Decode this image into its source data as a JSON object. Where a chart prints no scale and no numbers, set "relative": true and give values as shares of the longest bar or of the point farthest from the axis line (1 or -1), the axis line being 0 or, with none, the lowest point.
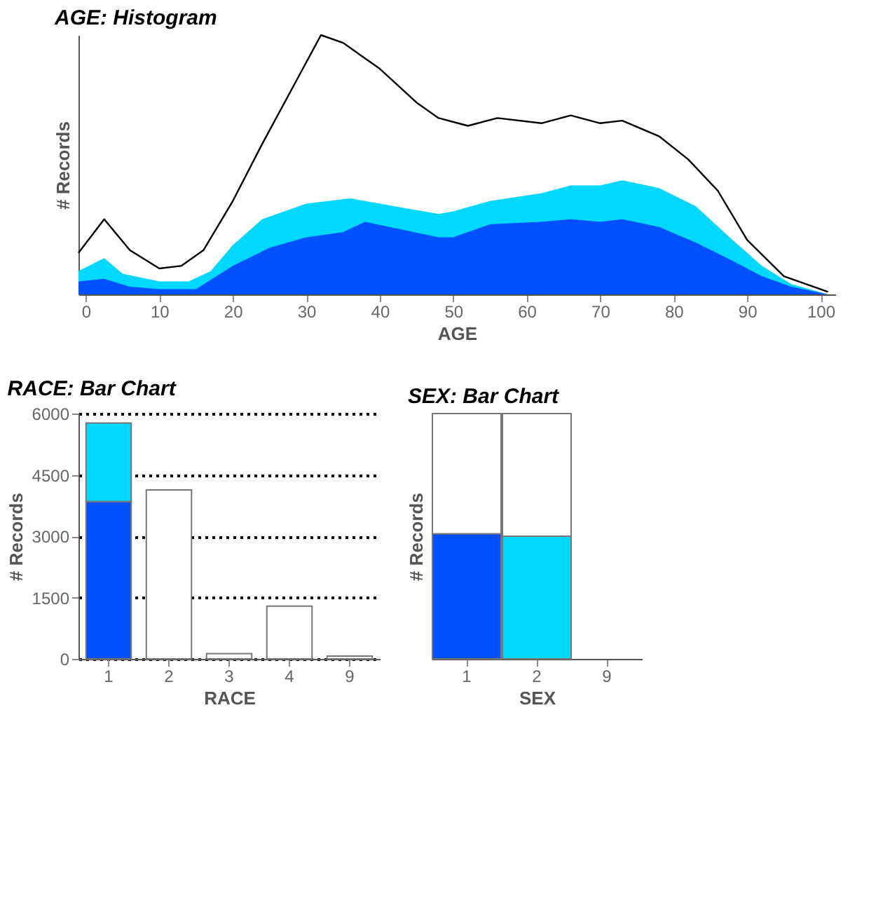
{
  "chart_data": [
    {
      "type": "area",
      "title": "AGE: Histogram",
      "xlabel": "AGE",
      "ylabel": "# Records",
      "relative": true,
      "xlim": [
        -1,
        102
      ],
      "xticks": [
        0,
        10,
        20,
        30,
        40,
        50,
        60,
        70,
        80,
        90,
        100
      ],
      "grid": false,
      "series": [
        {
          "type": "line",
          "color": "#000000",
          "x": [
            -1,
            2.5,
            6,
            10,
            13,
            16,
            20,
            24,
            28,
            32,
            35,
            40,
            45,
            48,
            52,
            56,
            62,
            66,
            70,
            73,
            78,
            82,
            86,
            90,
            95,
            101
          ],
          "values": [
            0.16,
            0.29,
            0.17,
            0.1,
            0.11,
            0.17,
            0.36,
            0.58,
            0.79,
            1.0,
            0.97,
            0.87,
            0.74,
            0.68,
            0.65,
            0.68,
            0.66,
            0.69,
            0.66,
            0.67,
            0.61,
            0.52,
            0.4,
            0.21,
            0.07,
            0.01
          ]
        },
        {
          "type": "area",
          "color": "#00d8ff",
          "x": [
            -1,
            2.5,
            5,
            10,
            14,
            17,
            20,
            24,
            30,
            36,
            42,
            48,
            50,
            55,
            62,
            66,
            70,
            73,
            78,
            83,
            88,
            92,
            96,
            101
          ],
          "values": [
            0.09,
            0.14,
            0.08,
            0.05,
            0.05,
            0.09,
            0.19,
            0.29,
            0.35,
            0.37,
            0.34,
            0.31,
            0.32,
            0.36,
            0.39,
            0.42,
            0.42,
            0.44,
            0.41,
            0.34,
            0.21,
            0.11,
            0.04,
            0.0
          ]
        },
        {
          "type": "area",
          "color": "#0050ff",
          "x": [
            -1,
            2.5,
            6,
            10,
            15,
            20,
            25,
            30,
            35,
            38,
            43,
            48,
            50,
            55,
            62,
            66,
            70,
            73,
            78,
            83,
            88,
            92,
            96,
            101
          ],
          "values": [
            0.05,
            0.06,
            0.03,
            0.02,
            0.02,
            0.11,
            0.18,
            0.22,
            0.24,
            0.28,
            0.25,
            0.22,
            0.22,
            0.27,
            0.28,
            0.29,
            0.28,
            0.29,
            0.26,
            0.2,
            0.13,
            0.07,
            0.03,
            0.0
          ]
        }
      ]
    },
    {
      "type": "bar",
      "title": "RACE: Bar Chart",
      "xlabel": "RACE",
      "ylabel": "# Records",
      "categories": [
        "1",
        "2",
        "3",
        "4",
        "9"
      ],
      "stacked": true,
      "ylim": [
        0,
        6000
      ],
      "yticks": [
        0,
        1500,
        3000,
        4500,
        6000
      ],
      "grid": "y",
      "series": [
        {
          "color": "#0050ff",
          "values": [
            3850,
            null,
            null,
            null,
            null
          ]
        },
        {
          "color": "#00d8ff",
          "values": [
            1920,
            null,
            null,
            null,
            null
          ]
        },
        {
          "color": "#ffffff",
          "values": [
            null,
            4130,
            130,
            1290,
            70
          ]
        }
      ]
    },
    {
      "type": "bar",
      "title": "SEX: Bar Chart",
      "xlabel": "SEX",
      "ylabel": "# Records",
      "categories": [
        "1",
        "2",
        "9"
      ],
      "stacked": true,
      "relative": true,
      "grid": false,
      "series": [
        {
          "color": "#0050ff",
          "values": [
            0.51,
            null,
            null
          ]
        },
        {
          "color": "#00d8ff",
          "values": [
            null,
            0.5,
            null
          ]
        },
        {
          "color": "#ffffff",
          "values": [
            0.49,
            0.5,
            null
          ]
        }
      ]
    }
  ]
}
